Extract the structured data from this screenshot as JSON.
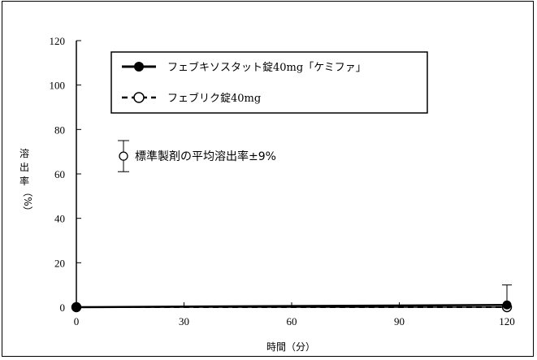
{
  "chart_data": {
    "type": "line",
    "title": "",
    "xlabel": "時間（分）",
    "ylabel_chars": [
      "溶",
      "出",
      "率",
      "（%）"
    ],
    "xlim": [
      0,
      120
    ],
    "ylim": [
      0,
      120
    ],
    "x_ticks": [
      0,
      30,
      60,
      90,
      120
    ],
    "y_ticks": [
      0,
      20,
      40,
      60,
      80,
      100,
      120
    ],
    "grid": false,
    "legend_position": "top-left",
    "series": [
      {
        "name": "フェブキソスタット錠40mg「ケミファ」",
        "marker": "filled-circle",
        "line": "solid",
        "x": [
          0,
          120
        ],
        "y": [
          0,
          1
        ]
      },
      {
        "name": "フェブリク錠40mg",
        "marker": "open-circle",
        "line": "dashed",
        "x": [
          0,
          120
        ],
        "y": [
          0,
          0
        ]
      }
    ],
    "error_bars": [
      {
        "x": 120,
        "y": 1,
        "low": -8,
        "high": 10
      }
    ],
    "annotation": {
      "text": "標準製剤の平均溶出率±9%",
      "marker": "open-circle",
      "y": 68,
      "low": 61,
      "high": 75
    }
  }
}
